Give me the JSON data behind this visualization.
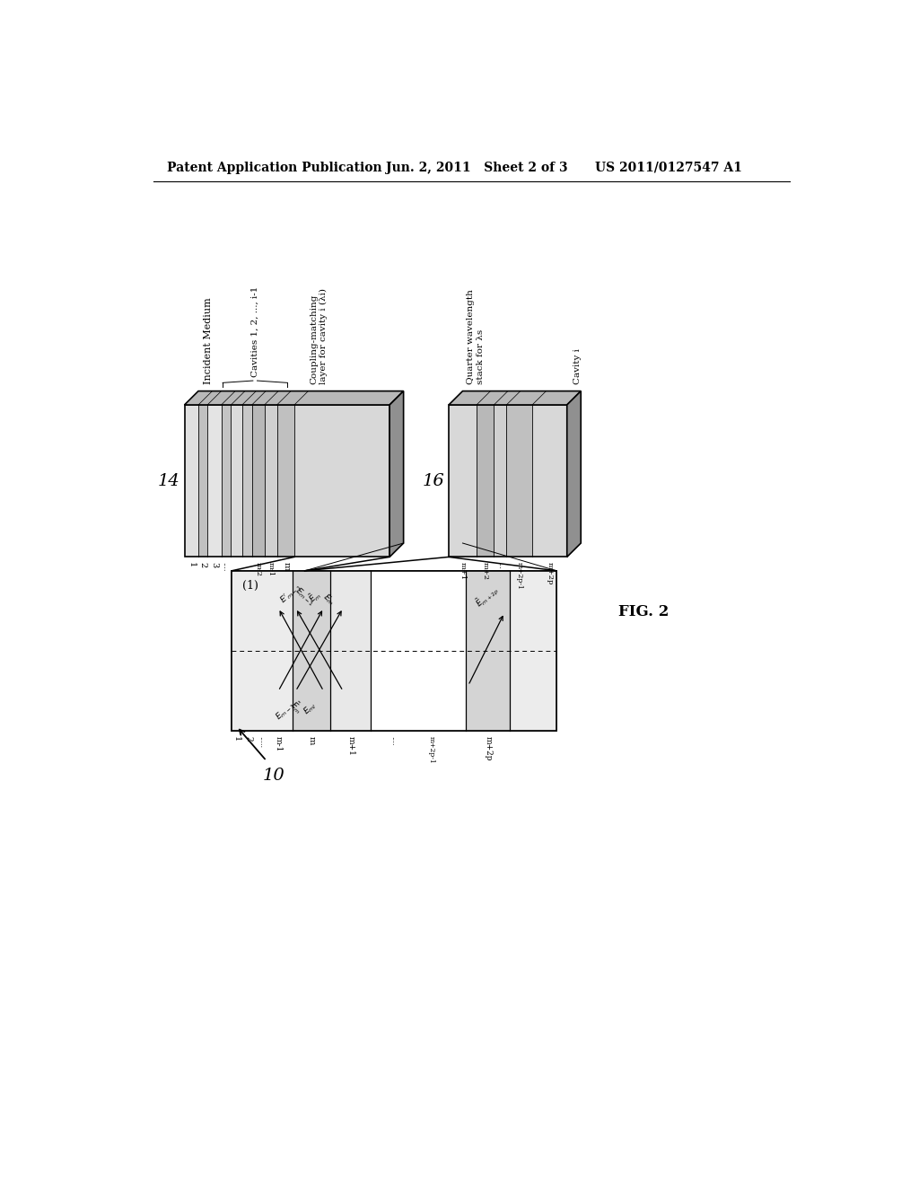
{
  "header_left": "Patent Application Publication",
  "header_mid": "Jun. 2, 2011   Sheet 2 of 3",
  "header_right": "US 2011/0127547 A1",
  "bg_color": "#ffffff",
  "label_14": "14",
  "label_16": "16",
  "label_10": "10",
  "label_fig": "FIG. 2",
  "label_1": "(1)",
  "lbl_incident": "Incident Medium",
  "lbl_cavities": "Cavities 1, 2, ..., i-1",
  "lbl_coupling": "Coupling-matching\nlayer for cavity i (λi)",
  "lbl_quarter": "Quarter wavelength\nstack for λs",
  "lbl_cavity_i": "Cavity i"
}
